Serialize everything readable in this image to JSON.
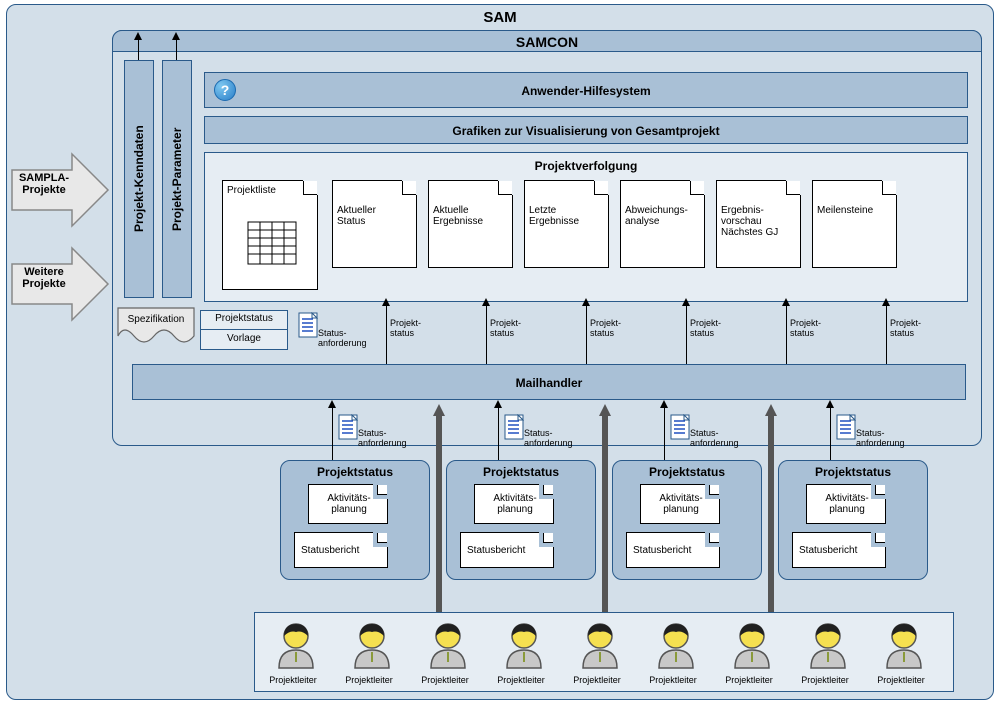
{
  "colors": {
    "outer_bg": "#d3dfe9",
    "band_bg": "#a9c0d6",
    "inner_bg": "#e6edf3",
    "border": "#2a5a8a",
    "doc_bg": "#ffffff",
    "grey_arrow": "#6b6b6b",
    "input_arrow_fill": "#e8e8e8",
    "input_arrow_stroke": "#888888"
  },
  "sam": {
    "title": "SAM"
  },
  "samcon": {
    "title": "SAMCON"
  },
  "inputs": {
    "sampla": "SAMPLA-\nProjekte",
    "weitere": "Weitere\nProjekte"
  },
  "vertical_boxes": {
    "kenndaten": "Projekt-Kenndaten",
    "parameter": "Projekt-Parameter"
  },
  "bands": {
    "help": "Anwender-Hilfesystem",
    "grafiken": "Grafiken zur Visualisierung von Gesamtprojekt",
    "projektverfolgung": "Projektverfolgung",
    "mailhandler": "Mailhandler"
  },
  "tracking_docs": {
    "projektliste": "Projektliste",
    "aktueller_status": "Aktueller\nStatus",
    "aktuelle_ergebnisse": "Aktuelle\nErgebnisse",
    "letzte_ergebnisse": "Letzte\nErgebnisse",
    "abweichung": "Abweichungs-\nanalyse",
    "ergebnis_vorschau": "Ergebnis-\nvorschau\nNächstes GJ",
    "meilensteine": "Meilensteine"
  },
  "below_tracking": {
    "spezifikation": "Spezifikation",
    "projektstatus": "Projektstatus",
    "vorlage": "Vorlage"
  },
  "arrow_labels": {
    "status_anforderung": "Status-\nanforderung",
    "projekt_status": "Projekt-\nstatus"
  },
  "projektstatus_box": {
    "title": "Projektstatus",
    "aktivitaet": "Aktivitäts-\nplanung",
    "statusbericht": "Statusbericht"
  },
  "person_label": "Projektleiter",
  "layout": {
    "tracking_doc_width": 85,
    "tracking_doc_height": 88,
    "person_count": 9,
    "projektstatus_count": 4
  }
}
